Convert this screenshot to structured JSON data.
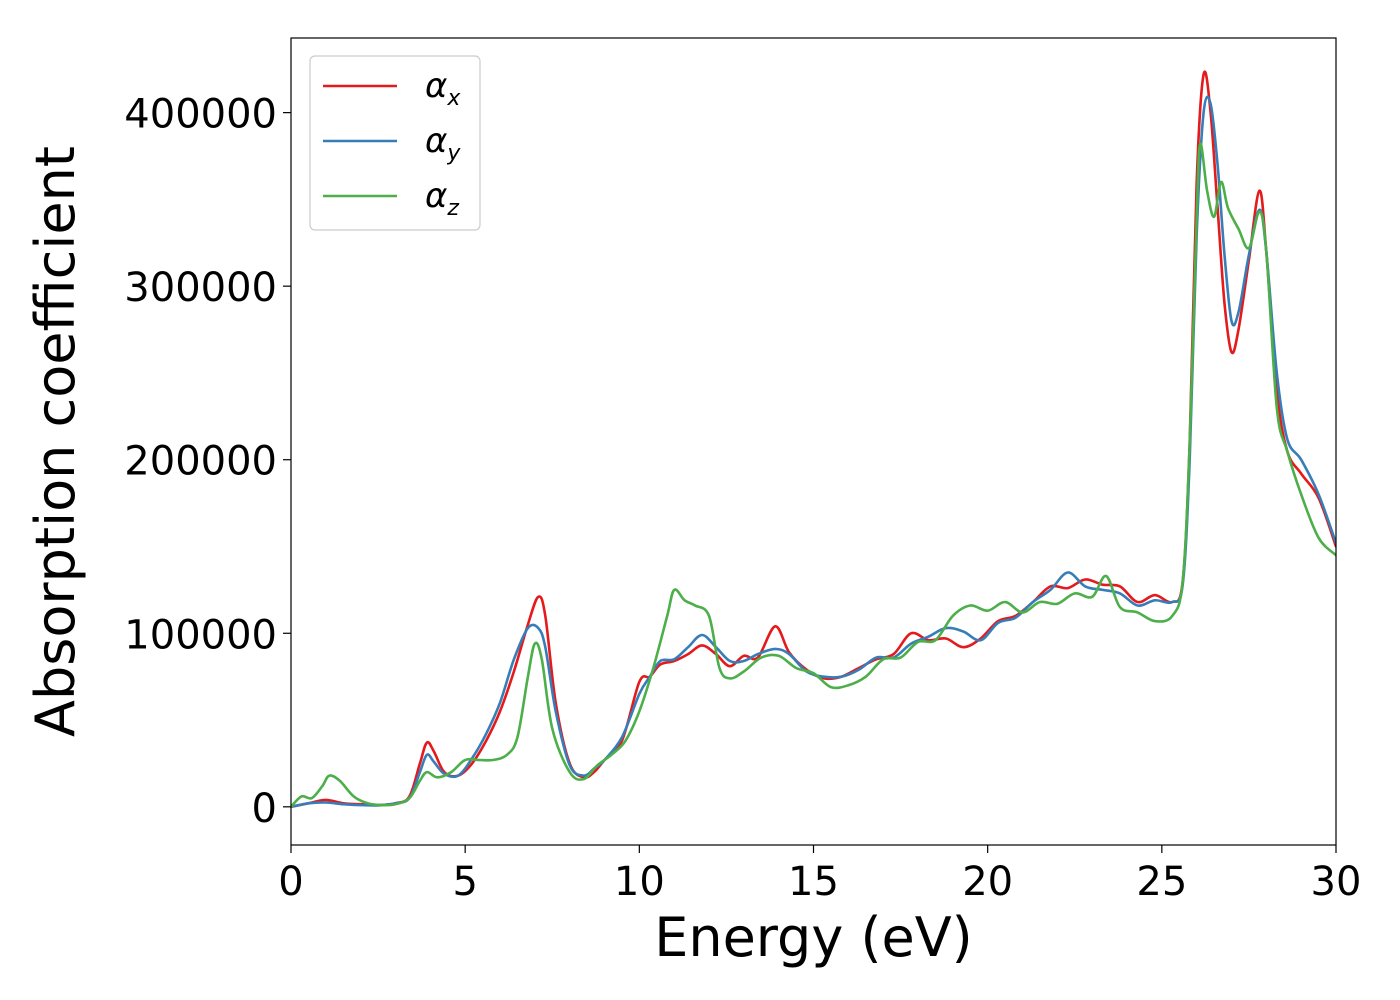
{
  "chart_data": {
    "type": "line",
    "xlabel": "Energy (eV)",
    "ylabel": "Absorption coefficient",
    "xlim": [
      0,
      30
    ],
    "ylim": [
      -22000,
      443000
    ],
    "xticks": [
      0,
      5,
      10,
      15,
      20,
      25,
      30
    ],
    "xtick_labels": [
      "0",
      "5",
      "10",
      "15",
      "20",
      "25",
      "30"
    ],
    "yticks": [
      0,
      100000,
      200000,
      300000,
      400000
    ],
    "ytick_labels": [
      "0",
      "100000",
      "200000",
      "300000",
      "400000"
    ],
    "grid": false,
    "legend_position": "top-left",
    "series": [
      {
        "name": "α",
        "subscript": "x",
        "color": "#e41a1c",
        "x": [
          0,
          0.5,
          1.0,
          1.5,
          2.0,
          2.5,
          3.0,
          3.4,
          3.7,
          3.9,
          4.1,
          4.4,
          4.8,
          5.2,
          5.6,
          6.0,
          6.4,
          6.8,
          7.1,
          7.3,
          7.6,
          8.0,
          8.4,
          8.7,
          9.0,
          9.5,
          10.0,
          10.3,
          10.6,
          11.0,
          11.4,
          11.8,
          12.2,
          12.6,
          13.0,
          13.4,
          13.9,
          14.3,
          14.8,
          15.3,
          15.8,
          16.3,
          16.8,
          17.3,
          17.8,
          18.3,
          18.8,
          19.3,
          19.8,
          20.3,
          20.8,
          21.3,
          21.8,
          22.3,
          22.8,
          23.3,
          23.8,
          24.3,
          24.8,
          25.3,
          25.6,
          25.8,
          26.0,
          26.2,
          26.4,
          26.6,
          26.8,
          27.0,
          27.2,
          27.5,
          27.8,
          28.0,
          28.3,
          28.6,
          29.0,
          29.5,
          30.0
        ],
        "y": [
          0,
          2000,
          4000,
          2000,
          1500,
          1000,
          2000,
          6000,
          25000,
          37000,
          32000,
          20000,
          18000,
          25000,
          38000,
          55000,
          78000,
          105000,
          121000,
          110000,
          60000,
          25000,
          17000,
          20000,
          27000,
          38000,
          72000,
          75000,
          82000,
          84000,
          88000,
          93000,
          88000,
          81000,
          87000,
          86000,
          104000,
          89000,
          79000,
          74000,
          75000,
          80000,
          85000,
          88000,
          100000,
          96000,
          97000,
          92000,
          97000,
          107000,
          110000,
          118000,
          127000,
          126000,
          131000,
          128000,
          127000,
          118000,
          122000,
          118000,
          130000,
          210000,
          360000,
          422000,
          400000,
          345000,
          290000,
          262000,
          275000,
          315000,
          355000,
          320000,
          240000,
          205000,
          192000,
          178000,
          150000
        ]
      },
      {
        "name": "α",
        "subscript": "y",
        "color": "#377eb8",
        "x": [
          0,
          0.5,
          1.0,
          1.5,
          2.0,
          2.5,
          3.0,
          3.4,
          3.7,
          3.9,
          4.1,
          4.4,
          4.8,
          5.2,
          5.6,
          6.0,
          6.4,
          6.8,
          7.1,
          7.3,
          7.6,
          8.0,
          8.4,
          8.7,
          9.0,
          9.5,
          10.0,
          10.3,
          10.6,
          11.0,
          11.4,
          11.8,
          12.2,
          12.6,
          13.0,
          13.4,
          13.9,
          14.3,
          14.8,
          15.3,
          15.8,
          16.3,
          16.8,
          17.3,
          17.8,
          18.3,
          18.8,
          19.3,
          19.8,
          20.3,
          20.8,
          21.3,
          21.8,
          22.3,
          22.8,
          23.3,
          23.8,
          24.3,
          24.8,
          25.3,
          25.6,
          25.8,
          26.0,
          26.2,
          26.4,
          26.6,
          26.8,
          27.0,
          27.2,
          27.5,
          27.8,
          28.0,
          28.3,
          28.6,
          29.0,
          29.5,
          30.0
        ],
        "y": [
          0,
          2000,
          2500,
          1500,
          1000,
          800,
          2000,
          5000,
          20000,
          30000,
          26000,
          19000,
          18000,
          28000,
          42000,
          60000,
          85000,
          103000,
          103000,
          92000,
          55000,
          24000,
          18000,
          22000,
          27000,
          40000,
          65000,
          75000,
          84000,
          85000,
          92000,
          99000,
          92000,
          84000,
          84000,
          88000,
          91000,
          88000,
          78000,
          75000,
          75000,
          79000,
          86000,
          86000,
          94000,
          98000,
          103000,
          101000,
          96000,
          106000,
          109000,
          118000,
          125000,
          135000,
          127000,
          125000,
          123000,
          116000,
          119000,
          118000,
          128000,
          200000,
          330000,
          400000,
          405000,
          370000,
          318000,
          280000,
          285000,
          318000,
          344000,
          320000,
          250000,
          212000,
          200000,
          180000,
          152000
        ]
      },
      {
        "name": "α",
        "subscript": "z",
        "color": "#4daf4a",
        "x": [
          0,
          0.3,
          0.6,
          0.9,
          1.1,
          1.4,
          1.8,
          2.2,
          2.6,
          3.0,
          3.4,
          3.7,
          3.9,
          4.2,
          4.6,
          5.0,
          5.4,
          5.8,
          6.2,
          6.5,
          6.8,
          7.0,
          7.2,
          7.5,
          8.0,
          8.4,
          8.8,
          9.2,
          9.6,
          10.0,
          10.4,
          10.8,
          11.0,
          11.3,
          11.6,
          12.0,
          12.3,
          12.6,
          13.0,
          13.5,
          14.0,
          14.5,
          15.0,
          15.5,
          16.0,
          16.5,
          17.0,
          17.5,
          18.0,
          18.5,
          19.0,
          19.5,
          20.0,
          20.5,
          21.0,
          21.5,
          22.0,
          22.5,
          23.0,
          23.4,
          23.8,
          24.3,
          24.8,
          25.3,
          25.6,
          25.8,
          26.0,
          26.1,
          26.3,
          26.5,
          26.7,
          26.9,
          27.2,
          27.5,
          27.8,
          28.0,
          28.3,
          28.6,
          29.0,
          29.5,
          30.0
        ],
        "y": [
          0,
          6000,
          5000,
          12000,
          18000,
          15000,
          6000,
          2000,
          1000,
          1500,
          5000,
          15000,
          20000,
          17000,
          20000,
          27000,
          27000,
          27000,
          30000,
          40000,
          75000,
          94000,
          85000,
          45000,
          20000,
          16000,
          24000,
          30000,
          38000,
          55000,
          80000,
          110000,
          125000,
          119000,
          116000,
          110000,
          80000,
          74000,
          78000,
          86000,
          87000,
          80000,
          77000,
          69000,
          70000,
          75000,
          85000,
          86000,
          95000,
          96000,
          110000,
          116000,
          113000,
          118000,
          112000,
          118000,
          117000,
          123000,
          121000,
          133000,
          115000,
          112000,
          107000,
          110000,
          130000,
          210000,
          340000,
          382000,
          355000,
          340000,
          360000,
          345000,
          333000,
          322000,
          343000,
          320000,
          230000,
          205000,
          180000,
          155000,
          145000
        ]
      }
    ]
  }
}
